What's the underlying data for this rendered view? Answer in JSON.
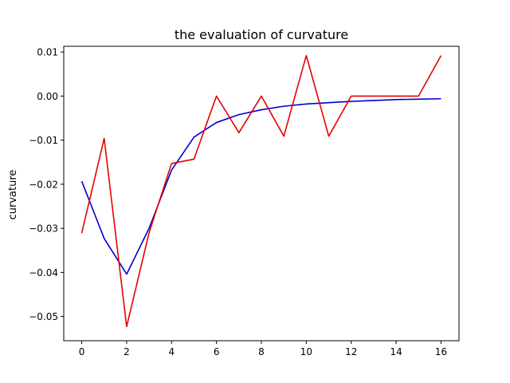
{
  "chart_data": {
    "type": "line",
    "title": "the evaluation of curvature",
    "xlabel": "",
    "ylabel": "curvature",
    "xlim": [
      -0.8,
      16.8
    ],
    "ylim": [
      -0.0555,
      0.0113
    ],
    "xticks": [
      0,
      2,
      4,
      6,
      8,
      10,
      12,
      14,
      16
    ],
    "yticks": [
      0.01,
      0.0,
      -0.01,
      -0.02,
      -0.03,
      -0.04,
      -0.05
    ],
    "xtick_labels": [
      "0",
      "2",
      "4",
      "6",
      "8",
      "10",
      "12",
      "14",
      "16"
    ],
    "ytick_labels": [
      "0.01",
      "0.00",
      "−0.01",
      "−0.02",
      "−0.03",
      "−0.04",
      "−0.05"
    ],
    "grid": false,
    "x": [
      0,
      1,
      2,
      3,
      4,
      5,
      6,
      7,
      8,
      9,
      10,
      11,
      12,
      13,
      14,
      15,
      16
    ],
    "series": [
      {
        "color": "#0000cc",
        "values": [
          -0.0193,
          -0.0323,
          -0.0404,
          -0.03,
          -0.0168,
          -0.0093,
          -0.006,
          -0.0042,
          -0.0031,
          -0.0023,
          -0.0018,
          -0.0015,
          -0.0012,
          -0.001,
          -0.0008,
          -0.0007,
          -0.0006
        ]
      },
      {
        "color": "#e60000",
        "values": [
          -0.0311,
          -0.0096,
          -0.0523,
          -0.031,
          -0.0153,
          -0.0143,
          0.0,
          -0.0083,
          0.0,
          -0.0091,
          0.0092,
          -0.0091,
          0.0,
          0.0,
          0.0,
          0.0,
          0.0092
        ]
      }
    ]
  }
}
